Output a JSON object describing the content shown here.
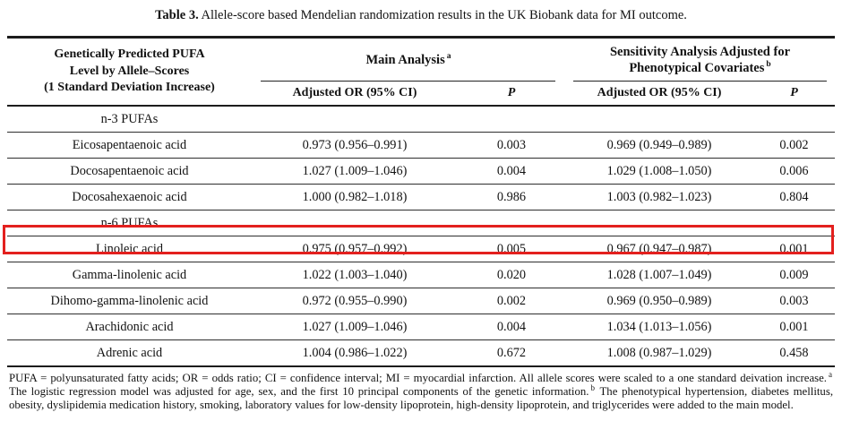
{
  "title": {
    "label": "Table 3.",
    "text": "Allele-score based Mendelian randomization results in the UK Biobank data for MI outcome."
  },
  "highlight_color": "#e3201e",
  "table": {
    "header": {
      "col1_lines": [
        "Genetically Predicted PUFA",
        "Level by Allele–Scores",
        "(1 Standard Deviation Increase)"
      ],
      "group1": {
        "line1": "Main Analysis",
        "sup": "a"
      },
      "group2": {
        "line1": "Sensitivity Analysis Adjusted for",
        "line2": "Phenotypical Covariates",
        "sup": "b"
      },
      "sub": {
        "or_main": "Adjusted OR (95% CI)",
        "p_main": "P",
        "or_sens": "Adjusted OR (95% CI)",
        "p_sens": "P"
      }
    },
    "rows": [
      {
        "name": "n-3 PUFAs",
        "or1": "",
        "p1": "",
        "or2": "",
        "p2": ""
      },
      {
        "name": "Eicosapentaenoic acid",
        "or1": "0.973 (0.956–0.991)",
        "p1": "0.003",
        "or2": "0.969 (0.949–0.989)",
        "p2": "0.002"
      },
      {
        "name": "Docosapentaenoic acid",
        "or1": "1.027 (1.009–1.046)",
        "p1": "0.004",
        "or2": "1.029 (1.008–1.050)",
        "p2": "0.006"
      },
      {
        "name": "Docosahexaenoic acid",
        "or1": "1.000 (0.982–1.018)",
        "p1": "0.986",
        "or2": "1.003 (0.982–1.023)",
        "p2": "0.804"
      },
      {
        "name": "n-6 PUFAs",
        "or1": "",
        "p1": "",
        "or2": "",
        "p2": ""
      },
      {
        "name": "Linoleic acid",
        "or1": "0.975 (0.957–0.992)",
        "p1": "0.005",
        "or2": "0.967 (0.947–0.987)",
        "p2": "0.001"
      },
      {
        "name": "Gamma-linolenic acid",
        "or1": "1.022 (1.003–1.040)",
        "p1": "0.020",
        "or2": "1.028 (1.007–1.049)",
        "p2": "0.009"
      },
      {
        "name": "Dihomo-gamma-linolenic acid",
        "or1": "0.972 (0.955–0.990)",
        "p1": "0.002",
        "or2": "0.969 (0.950–0.989)",
        "p2": "0.003"
      },
      {
        "name": "Arachidonic acid",
        "or1": "1.027 (1.009–1.046)",
        "p1": "0.004",
        "or2": "1.034 (1.013–1.056)",
        "p2": "0.001"
      },
      {
        "name": "Adrenic acid",
        "or1": "1.004 (0.986–1.022)",
        "p1": "0.672",
        "or2": "1.008 (0.987–1.029)",
        "p2": "0.458"
      }
    ]
  },
  "footnote": {
    "part1": "PUFA = polyunsaturated fatty acids; OR = odds ratio; CI = confidence interval; MI = myocardial infarction. All allele scores were scaled to a one standard deivation increase.",
    "sup_a": "a",
    "part2": "The logistic regression model was adjusted for age, sex, and the first 10 principal components of the genetic information.",
    "sup_b": "b",
    "part3": "The phenotypical hypertension, diabetes mellitus, obesity, dyslipidemia medication history, smoking, laboratory values for low-density lipoprotein, high-density lipoprotein, and triglycerides were added to the main model."
  }
}
